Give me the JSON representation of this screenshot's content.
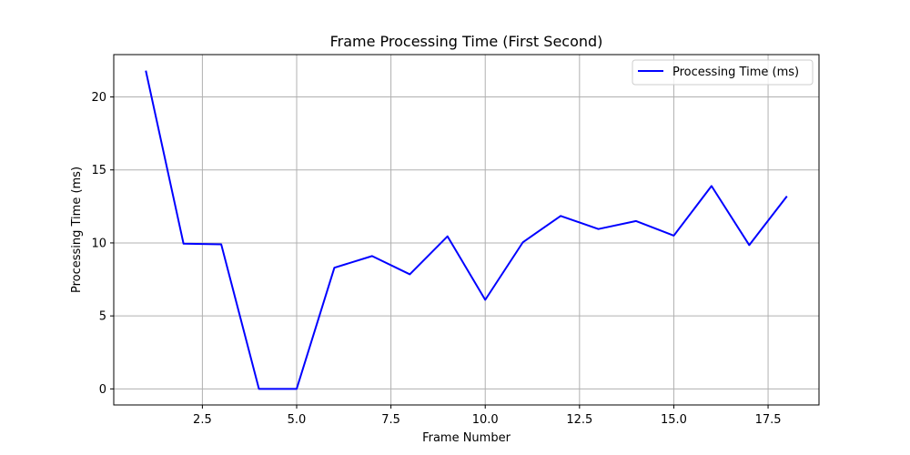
{
  "chart_data": {
    "type": "line",
    "title": "Frame Processing Time (First Second)",
    "xlabel": "Frame Number",
    "ylabel": "Processing Time (ms)",
    "xlim": [
      0.15,
      18.85
    ],
    "ylim": [
      -1.1,
      22.9
    ],
    "xticks": [
      2.5,
      5.0,
      7.5,
      10.0,
      12.5,
      15.0,
      17.5
    ],
    "xtick_labels": [
      "2.5",
      "5.0",
      "7.5",
      "10.0",
      "12.5",
      "15.0",
      "17.5"
    ],
    "yticks": [
      0,
      5,
      10,
      15,
      20
    ],
    "ytick_labels": [
      "0",
      "5",
      "10",
      "15",
      "20"
    ],
    "grid": true,
    "legend_position": "top-right",
    "series": [
      {
        "name": "Processing Time (ms)",
        "color": "#0000ff",
        "x": [
          1,
          2,
          3,
          4,
          5,
          6,
          7,
          8,
          9,
          10,
          11,
          12,
          13,
          14,
          15,
          16,
          17,
          18
        ],
        "y": [
          21.8,
          9.95,
          9.9,
          0.0,
          0.0,
          8.3,
          9.1,
          7.85,
          10.45,
          6.1,
          10.05,
          11.85,
          10.95,
          11.5,
          10.5,
          13.9,
          9.85,
          13.2
        ]
      }
    ]
  }
}
